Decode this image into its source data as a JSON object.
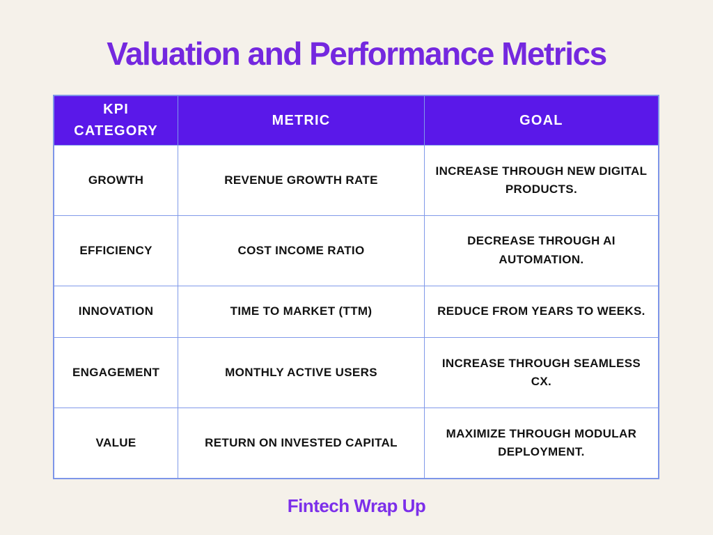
{
  "page": {
    "title": "Valuation and Performance Metrics",
    "footer_brand": "Fintech Wrap Up"
  },
  "colors": {
    "background": "#F5F1EA",
    "title_text": "#7428DF",
    "header_bg": "#5A18E9",
    "header_text": "#FFFFFF",
    "grid_line": "#8099E9",
    "cell_text": "#121212",
    "footer_text": "#7C2FEA"
  },
  "table": {
    "headers": [
      "KPI CATEGORY",
      "METRIC",
      "GOAL"
    ],
    "rows": [
      {
        "category": "GROWTH",
        "metric": "REVENUE GROWTH RATE",
        "goal": "INCREASE THROUGH NEW DIGITAL PRODUCTS."
      },
      {
        "category": "EFFICIENCY",
        "metric": "COST INCOME RATIO",
        "goal": "DECREASE THROUGH AI AUTOMATION."
      },
      {
        "category": "INNOVATION",
        "metric": "TIME TO MARKET (TTM)",
        "goal": "REDUCE FROM YEARS TO WEEKS."
      },
      {
        "category": "ENGAGEMENT",
        "metric": "MONTHLY ACTIVE USERS",
        "goal": "INCREASE THROUGH SEAMLESS CX."
      },
      {
        "category": "VALUE",
        "metric": "RETURN ON INVESTED CAPITAL",
        "goal": "MAXIMIZE THROUGH MODULAR DEPLOYMENT."
      }
    ]
  },
  "chart_data": {
    "type": "table",
    "title": "Valuation and Performance Metrics",
    "columns": [
      "KPI CATEGORY",
      "METRIC",
      "GOAL"
    ],
    "rows": [
      [
        "GROWTH",
        "REVENUE GROWTH RATE",
        "INCREASE THROUGH NEW DIGITAL PRODUCTS."
      ],
      [
        "EFFICIENCY",
        "COST INCOME RATIO",
        "DECREASE THROUGH AI AUTOMATION."
      ],
      [
        "INNOVATION",
        "TIME TO MARKET (TTM)",
        "REDUCE FROM YEARS TO WEEKS."
      ],
      [
        "ENGAGEMENT",
        "MONTHLY ACTIVE USERS",
        "INCREASE THROUGH SEAMLESS CX."
      ],
      [
        "VALUE",
        "RETURN ON INVESTED CAPITAL",
        "MAXIMIZE THROUGH MODULAR DEPLOYMENT."
      ]
    ],
    "layout": {
      "header_position": "top",
      "grid": true,
      "footer_brand": "Fintech Wrap Up"
    }
  }
}
